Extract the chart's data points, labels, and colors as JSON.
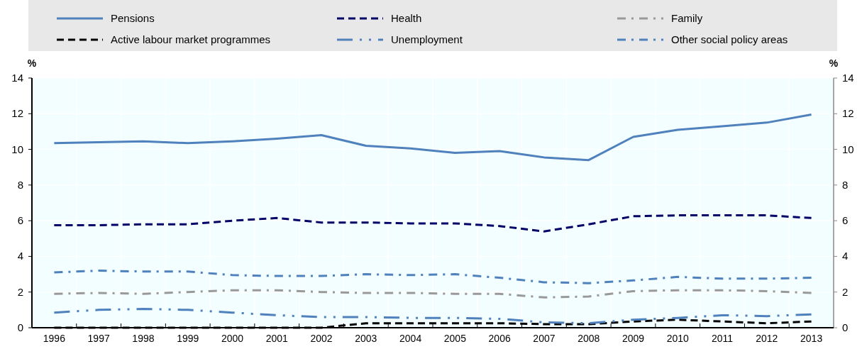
{
  "chart_data": {
    "type": "line",
    "ylabel": "%",
    "y2label": "%",
    "categories": [
      "1996",
      "1997",
      "1998",
      "1999",
      "2000",
      "2001",
      "2002",
      "2003",
      "2004",
      "2005",
      "2006",
      "2007",
      "2008",
      "2009",
      "2010",
      "2011",
      "2012",
      "2013"
    ],
    "series": [
      {
        "name": "Pensions",
        "color": "#4f81bd",
        "line_style": "solid",
        "values": [
          10.35,
          10.4,
          10.45,
          10.35,
          10.45,
          10.6,
          10.8,
          10.2,
          10.05,
          9.8,
          9.9,
          9.55,
          9.4,
          10.7,
          11.1,
          11.3,
          11.5,
          11.95
        ]
      },
      {
        "name": "Health",
        "color": "#000066",
        "line_style": "dashed",
        "values": [
          5.75,
          5.75,
          5.8,
          5.8,
          6.0,
          6.15,
          5.9,
          5.9,
          5.85,
          5.85,
          5.7,
          5.4,
          5.8,
          6.25,
          6.3,
          6.3,
          6.3,
          6.15
        ]
      },
      {
        "name": "Family",
        "color": "#999999",
        "line_style": "dashdot",
        "values": [
          1.9,
          1.95,
          1.9,
          2.0,
          2.1,
          2.1,
          2.0,
          1.95,
          1.95,
          1.9,
          1.9,
          1.7,
          1.75,
          2.05,
          2.1,
          2.1,
          2.05,
          1.95
        ]
      },
      {
        "name": "Active labour market programmes",
        "color": "#000000",
        "line_style": "dashed",
        "values": [
          0,
          0,
          0,
          0,
          0,
          0,
          0,
          0.25,
          0.25,
          0.25,
          0.25,
          0.2,
          0.2,
          0.35,
          0.45,
          0.35,
          0.25,
          0.35
        ]
      },
      {
        "name": "Unemployment",
        "color": "#4f81bd",
        "line_style": "dashdotdot",
        "values": [
          0.85,
          1.0,
          1.05,
          1.0,
          0.85,
          0.7,
          0.6,
          0.6,
          0.55,
          0.55,
          0.5,
          0.3,
          0.25,
          0.45,
          0.55,
          0.7,
          0.65,
          0.75
        ]
      },
      {
        "name": "Other social policy areas",
        "color": "#4f81bd",
        "line_style": "dashdot",
        "values": [
          3.1,
          3.2,
          3.15,
          3.15,
          2.95,
          2.9,
          2.9,
          3.0,
          2.95,
          3.0,
          2.8,
          2.55,
          2.5,
          2.65,
          2.85,
          2.75,
          2.75,
          2.8
        ]
      }
    ],
    "ylim": [
      0,
      14
    ],
    "yticks": [
      0,
      2,
      4,
      6,
      8,
      10,
      12,
      14
    ],
    "y2lim": [
      0,
      14
    ],
    "y2ticks": [
      0,
      2,
      4,
      6,
      8,
      10,
      12,
      14
    ],
    "grid": true,
    "legend": "top"
  }
}
